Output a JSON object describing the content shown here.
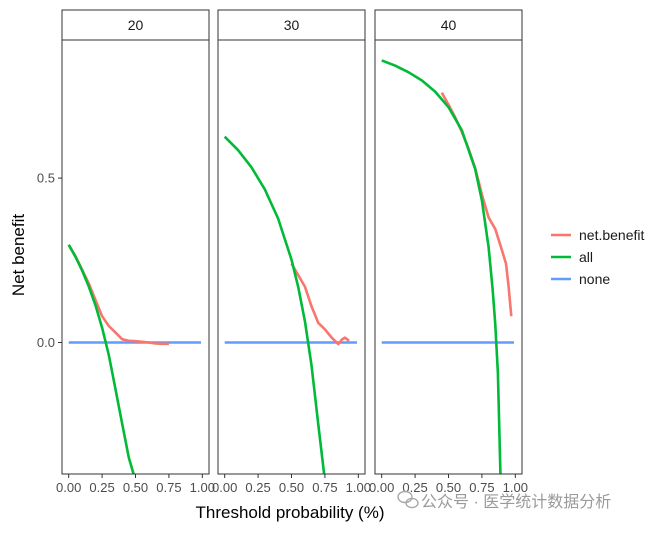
{
  "chart_data": {
    "type": "line",
    "xlabel": "Threshold probability (%)",
    "ylabel": "Net benefit",
    "xlim": [
      -0.05,
      1.05
    ],
    "ylim": [
      -0.4,
      0.92
    ],
    "x_ticks": [
      0.0,
      0.25,
      0.5,
      0.75,
      1.0
    ],
    "x_tick_labels": [
      "0.00",
      "0.25",
      "0.50",
      "0.75",
      "1.00"
    ],
    "y_ticks": [
      0.0,
      0.5
    ],
    "y_tick_labels": [
      "0.0",
      "0.5"
    ],
    "grid": false,
    "legend_placement": "right",
    "colors": {
      "net.benefit": "#F8766D",
      "all": "#00BA38",
      "none": "#619CFF"
    },
    "legend": [
      {
        "key": "net.benefit",
        "label": "net.benefit"
      },
      {
        "key": "all",
        "label": "all"
      },
      {
        "key": "none",
        "label": "none"
      }
    ],
    "panels": [
      {
        "label": "20",
        "series": [
          {
            "key": "net.benefit",
            "x": [
              0.0,
              0.05,
              0.1,
              0.15,
              0.2,
              0.25,
              0.3,
              0.35,
              0.4,
              0.45,
              0.5,
              0.55,
              0.6,
              0.65,
              0.7,
              0.75
            ],
            "y": [
              0.297,
              0.263,
              0.222,
              0.18,
              0.13,
              0.08,
              0.05,
              0.03,
              0.01,
              0.005,
              0.004,
              0.002,
              0.0,
              -0.003,
              -0.004,
              -0.004
            ]
          },
          {
            "key": "all",
            "x": [
              0.0,
              0.05,
              0.1,
              0.15,
              0.2,
              0.25,
              0.3,
              0.35,
              0.4,
              0.45,
              0.5
            ],
            "y": [
              0.297,
              0.261,
              0.22,
              0.171,
              0.114,
              0.045,
              -0.038,
              -0.142,
              -0.246,
              -0.35,
              -0.42
            ]
          },
          {
            "key": "none",
            "x": [
              0.0,
              0.99
            ],
            "y": [
              0.0,
              0.0
            ]
          }
        ]
      },
      {
        "label": "30",
        "series": [
          {
            "key": "net.benefit",
            "x": [
              0.5,
              0.55,
              0.6,
              0.65,
              0.7,
              0.75,
              0.8,
              0.85,
              0.88,
              0.9,
              0.93
            ],
            "y": [
              0.24,
              0.205,
              0.17,
              0.11,
              0.06,
              0.04,
              0.015,
              -0.005,
              0.01,
              0.015,
              0.005
            ]
          },
          {
            "key": "all",
            "x": [
              0.0,
              0.1,
              0.2,
              0.3,
              0.4,
              0.5,
              0.55,
              0.6,
              0.65,
              0.7,
              0.75
            ],
            "y": [
              0.626,
              0.585,
              0.533,
              0.466,
              0.377,
              0.252,
              0.169,
              0.065,
              -0.069,
              -0.247,
              -0.42
            ]
          },
          {
            "key": "none",
            "x": [
              0.0,
              0.99
            ],
            "y": [
              0.0,
              0.0
            ]
          }
        ]
      },
      {
        "label": "40",
        "series": [
          {
            "key": "net.benefit",
            "x": [
              0.45,
              0.5,
              0.55,
              0.6,
              0.65,
              0.7,
              0.75,
              0.8,
              0.85,
              0.9,
              0.93,
              0.95,
              0.97
            ],
            "y": [
              0.76,
              0.723,
              0.685,
              0.64,
              0.59,
              0.53,
              0.45,
              0.38,
              0.345,
              0.28,
              0.24,
              0.17,
              0.08
            ]
          },
          {
            "key": "all",
            "x": [
              0.0,
              0.1,
              0.2,
              0.3,
              0.4,
              0.5,
              0.6,
              0.7,
              0.75,
              0.8,
              0.83,
              0.85,
              0.87,
              0.89
            ],
            "y": [
              0.858,
              0.842,
              0.822,
              0.797,
              0.763,
              0.716,
              0.645,
              0.527,
              0.432,
              0.29,
              0.163,
              0.054,
              -0.093,
              -0.42
            ]
          },
          {
            "key": "none",
            "x": [
              0.0,
              0.99
            ],
            "y": [
              0.0,
              0.0
            ]
          }
        ]
      }
    ]
  },
  "watermark": {
    "icon": "wechat-icon",
    "text": "公众号 · 医学统计数据分析"
  }
}
